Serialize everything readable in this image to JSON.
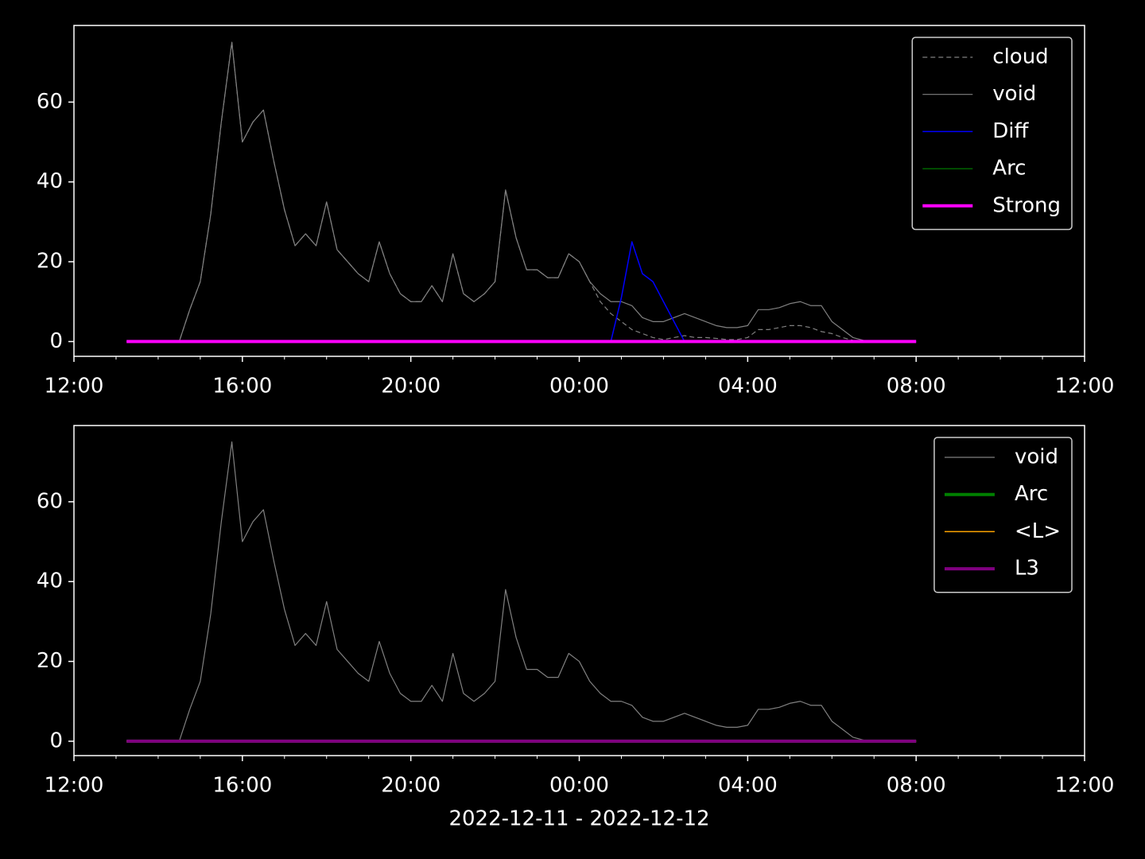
{
  "chart_data": [
    {
      "type": "line",
      "x": [
        1.25,
        1.5,
        1.75,
        2,
        2.25,
        2.5,
        2.75,
        3,
        3.25,
        3.5,
        3.75,
        4,
        4.25,
        4.5,
        4.75,
        5,
        5.25,
        5.5,
        5.75,
        6,
        6.25,
        6.5,
        6.75,
        7,
        7.25,
        7.5,
        7.75,
        8,
        8.25,
        8.5,
        8.75,
        9,
        9.25,
        9.5,
        9.75,
        10,
        10.25,
        10.5,
        10.75,
        11,
        11.25,
        11.5,
        11.75,
        12,
        12.25,
        12.5,
        12.75,
        13,
        13.25,
        13.5,
        13.75,
        14,
        14.25,
        14.5,
        14.75,
        15,
        15.25,
        15.5,
        15.75,
        16,
        16.25,
        16.5,
        16.75,
        17,
        17.25,
        17.5,
        17.75,
        18,
        18.25,
        18.5,
        18.75,
        19,
        19.25,
        19.5,
        19.75,
        20
      ],
      "xlim": [
        0,
        24
      ],
      "xticks": [
        {
          "value": 0,
          "label": "12:00"
        },
        {
          "value": 4,
          "label": "16:00"
        },
        {
          "value": 8,
          "label": "20:00"
        },
        {
          "value": 12,
          "label": "00:00"
        },
        {
          "value": 16,
          "label": "04:00"
        },
        {
          "value": 20,
          "label": "08:00"
        },
        {
          "value": 24,
          "label": "12:00"
        }
      ],
      "xminorticks": [
        1,
        2,
        3,
        5,
        6,
        7,
        9,
        10,
        11,
        13,
        14,
        15,
        17,
        18,
        19,
        21,
        22,
        23
      ],
      "ylim": [
        -3.7,
        79.2
      ],
      "yticks": [
        0,
        20,
        40,
        60
      ],
      "legend": "upper right",
      "series": [
        {
          "name": "cloud",
          "color": "#808080",
          "linestyle": "dashed",
          "linewidth": 1.2,
          "values": [
            0,
            0,
            0,
            0,
            0,
            0,
            8,
            15,
            32,
            55,
            75,
            50,
            55,
            58,
            45,
            33,
            24,
            27,
            24,
            35,
            23,
            20,
            17,
            15,
            25,
            17,
            12,
            10,
            10,
            14,
            10,
            22,
            12,
            10,
            12,
            15,
            38,
            26,
            18,
            18,
            16,
            16,
            22,
            20,
            15,
            10,
            7,
            5,
            3,
            2,
            1,
            0.5,
            1,
            1.5,
            1,
            1,
            0.8,
            0.5,
            0.5,
            1,
            3,
            3,
            3.5,
            4,
            4,
            3.5,
            2.5,
            2,
            1,
            0.3,
            0,
            0,
            0,
            0,
            0,
            0
          ]
        },
        {
          "name": "void",
          "color": "#808080",
          "linestyle": "solid",
          "linewidth": 1.2,
          "values": [
            0,
            0,
            0,
            0,
            0,
            0,
            8,
            15,
            32,
            55,
            75,
            50,
            55,
            58,
            45,
            33,
            24,
            27,
            24,
            35,
            23,
            20,
            17,
            15,
            25,
            17,
            12,
            10,
            10,
            14,
            10,
            22,
            12,
            10,
            12,
            15,
            38,
            26,
            18,
            18,
            16,
            16,
            22,
            20,
            15,
            12,
            10,
            10,
            9,
            6,
            5,
            5,
            6,
            7,
            6,
            5,
            4,
            3.5,
            3.5,
            4,
            8,
            8,
            8.5,
            9.5,
            10,
            9,
            9,
            5,
            3,
            1,
            0.3,
            0,
            0,
            0,
            0,
            0
          ]
        },
        {
          "name": "Diff",
          "color": "#0000ff",
          "linestyle": "solid",
          "linewidth": 1.5,
          "values": [
            0,
            0,
            0,
            0,
            0,
            0,
            0,
            0,
            0,
            0,
            0,
            0,
            0,
            0,
            0,
            0,
            0,
            0,
            0,
            0,
            0,
            0,
            0,
            0,
            0,
            0,
            0,
            0,
            0,
            0,
            0,
            0,
            0,
            0,
            0,
            0,
            0,
            0,
            0,
            0,
            0,
            0,
            0,
            0,
            0,
            0,
            0,
            11,
            25,
            17,
            15,
            10,
            5,
            0,
            0,
            0,
            0,
            0,
            0,
            0,
            0,
            0,
            0,
            0,
            0,
            0,
            0,
            0,
            0,
            0,
            0,
            0,
            0,
            0,
            0,
            0
          ]
        },
        {
          "name": "Arc",
          "color": "#006400",
          "linestyle": "solid",
          "linewidth": 1.5,
          "values": [
            0,
            0,
            0,
            0,
            0,
            0,
            0,
            0,
            0,
            0,
            0,
            0,
            0,
            0,
            0,
            0,
            0,
            0,
            0,
            0,
            0,
            0,
            0,
            0,
            0,
            0,
            0,
            0,
            0,
            0,
            0,
            0,
            0,
            0,
            0,
            0,
            0,
            0,
            0,
            0,
            0,
            0,
            0,
            0,
            0,
            0,
            0,
            0,
            0,
            0,
            0,
            0,
            0,
            0,
            0,
            0,
            0,
            0,
            0,
            0,
            0,
            0,
            0,
            0,
            0,
            0,
            0,
            0,
            0,
            0,
            0,
            0,
            0,
            0,
            0,
            0
          ]
        },
        {
          "name": "Strong",
          "color": "#ff00ff",
          "linestyle": "solid",
          "linewidth": 4,
          "values": [
            0,
            0,
            0,
            0,
            0,
            0,
            0,
            0,
            0,
            0,
            0,
            0,
            0,
            0,
            0,
            0,
            0,
            0,
            0,
            0,
            0,
            0,
            0,
            0,
            0,
            0,
            0,
            0,
            0,
            0,
            0,
            0,
            0,
            0,
            0,
            0,
            0,
            0,
            0,
            0,
            0,
            0,
            0,
            0,
            0,
            0,
            0,
            0,
            0,
            0,
            0,
            0,
            0,
            0,
            0,
            0,
            0,
            0,
            0,
            0,
            0,
            0,
            0,
            0,
            0,
            0,
            0,
            0,
            0,
            0,
            0,
            0,
            0,
            0,
            0,
            0
          ]
        }
      ]
    },
    {
      "type": "line",
      "xlabel": "2022-12-11 - 2022-12-12",
      "x": [
        1.25,
        1.5,
        1.75,
        2,
        2.25,
        2.5,
        2.75,
        3,
        3.25,
        3.5,
        3.75,
        4,
        4.25,
        4.5,
        4.75,
        5,
        5.25,
        5.5,
        5.75,
        6,
        6.25,
        6.5,
        6.75,
        7,
        7.25,
        7.5,
        7.75,
        8,
        8.25,
        8.5,
        8.75,
        9,
        9.25,
        9.5,
        9.75,
        10,
        10.25,
        10.5,
        10.75,
        11,
        11.25,
        11.5,
        11.75,
        12,
        12.25,
        12.5,
        12.75,
        13,
        13.25,
        13.5,
        13.75,
        14,
        14.25,
        14.5,
        14.75,
        15,
        15.25,
        15.5,
        15.75,
        16,
        16.25,
        16.5,
        16.75,
        17,
        17.25,
        17.5,
        17.75,
        18,
        18.25,
        18.5,
        18.75,
        19,
        19.25,
        19.5,
        19.75,
        20
      ],
      "xlim": [
        0,
        24
      ],
      "xticks": [
        {
          "value": 0,
          "label": "12:00"
        },
        {
          "value": 4,
          "label": "16:00"
        },
        {
          "value": 8,
          "label": "20:00"
        },
        {
          "value": 12,
          "label": "00:00"
        },
        {
          "value": 16,
          "label": "04:00"
        },
        {
          "value": 20,
          "label": "08:00"
        },
        {
          "value": 24,
          "label": "12:00"
        }
      ],
      "xminorticks": [
        1,
        2,
        3,
        5,
        6,
        7,
        9,
        10,
        11,
        13,
        14,
        15,
        17,
        18,
        19,
        21,
        22,
        23
      ],
      "ylim": [
        -3.6,
        79.1
      ],
      "yticks": [
        0,
        20,
        40,
        60
      ],
      "legend": "upper right",
      "series": [
        {
          "name": "void",
          "color": "#808080",
          "linestyle": "solid",
          "linewidth": 1.2,
          "values": [
            0,
            0,
            0,
            0,
            0,
            0,
            8,
            15,
            32,
            55,
            75,
            50,
            55,
            58,
            45,
            33,
            24,
            27,
            24,
            35,
            23,
            20,
            17,
            15,
            25,
            17,
            12,
            10,
            10,
            14,
            10,
            22,
            12,
            10,
            12,
            15,
            38,
            26,
            18,
            18,
            16,
            16,
            22,
            20,
            15,
            12,
            10,
            10,
            9,
            6,
            5,
            5,
            6,
            7,
            6,
            5,
            4,
            3.5,
            3.5,
            4,
            8,
            8,
            8.5,
            9.5,
            10,
            9,
            9,
            5,
            3,
            1,
            0.3,
            0,
            0,
            0,
            0,
            0
          ]
        },
        {
          "name": "Arc",
          "color": "#008000",
          "linestyle": "solid",
          "linewidth": 4,
          "values": [
            0,
            0,
            0,
            0,
            0,
            0,
            0,
            0,
            0,
            0,
            0,
            0,
            0,
            0,
            0,
            0,
            0,
            0,
            0,
            0,
            0,
            0,
            0,
            0,
            0,
            0,
            0,
            0,
            0,
            0,
            0,
            0,
            0,
            0,
            0,
            0,
            0,
            0,
            0,
            0,
            0,
            0,
            0,
            0,
            0,
            0,
            0,
            0,
            0,
            0,
            0,
            0,
            0,
            0,
            0,
            0,
            0,
            0,
            0,
            0,
            0,
            0,
            0,
            0,
            0,
            0,
            0,
            0,
            0,
            0,
            0,
            0,
            0,
            0,
            0,
            0
          ]
        },
        {
          "name": "<L>",
          "color": "#ffa500",
          "linestyle": "solid",
          "linewidth": 1.5,
          "values": [
            0,
            0,
            0,
            0,
            0,
            0,
            0,
            0,
            0,
            0,
            0,
            0,
            0,
            0,
            0,
            0,
            0,
            0,
            0,
            0,
            0,
            0,
            0,
            0,
            0,
            0,
            0,
            0,
            0,
            0,
            0,
            0,
            0,
            0,
            0,
            0,
            0,
            0,
            0,
            0,
            0,
            0,
            0,
            0,
            0,
            0,
            0,
            0,
            0,
            0,
            0,
            0,
            0,
            0,
            0,
            0,
            0,
            0,
            0,
            0,
            0,
            0,
            0,
            0,
            0,
            0,
            0,
            0,
            0,
            0,
            0,
            0,
            0,
            0,
            0,
            0
          ]
        },
        {
          "name": "L3",
          "color": "#800080",
          "linestyle": "solid",
          "linewidth": 4,
          "values": [
            0,
            0,
            0,
            0,
            0,
            0,
            0,
            0,
            0,
            0,
            0,
            0,
            0,
            0,
            0,
            0,
            0,
            0,
            0,
            0,
            0,
            0,
            0,
            0,
            0,
            0,
            0,
            0,
            0,
            0,
            0,
            0,
            0,
            0,
            0,
            0,
            0,
            0,
            0,
            0,
            0,
            0,
            0,
            0,
            0,
            0,
            0,
            0,
            0,
            0,
            0,
            0,
            0,
            0,
            0,
            0,
            0,
            0,
            0,
            0,
            0,
            0,
            0,
            0,
            0,
            0,
            0,
            0,
            0,
            0,
            0,
            0,
            0,
            0,
            0,
            0
          ]
        }
      ]
    }
  ]
}
